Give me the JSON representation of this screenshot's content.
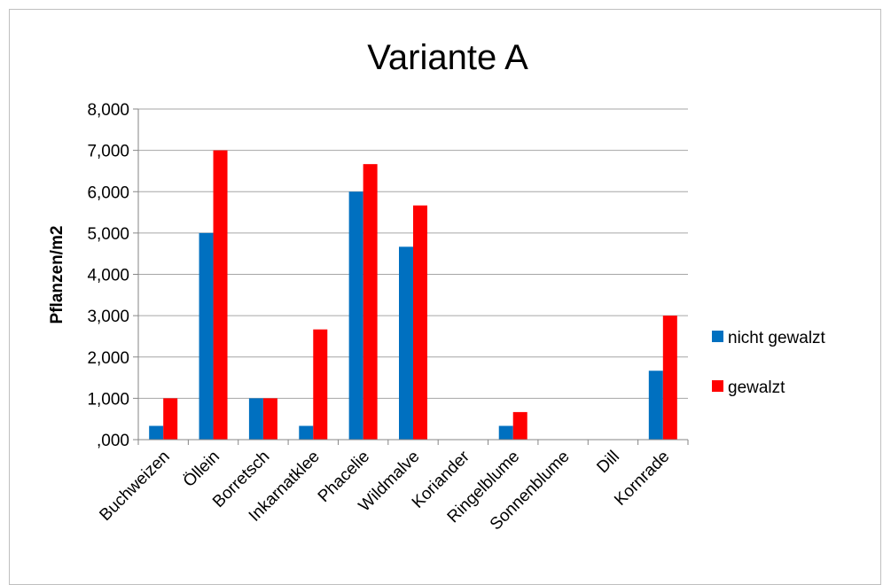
{
  "chart_data": {
    "type": "bar",
    "title": "Variante A",
    "xlabel": "",
    "ylabel": "Pflanzen/m2",
    "ylim": [
      0,
      8
    ],
    "yticks": [
      {
        "value": 0,
        "label": ",000"
      },
      {
        "value": 1,
        "label": "1,000"
      },
      {
        "value": 2,
        "label": "2,000"
      },
      {
        "value": 3,
        "label": "3,000"
      },
      {
        "value": 4,
        "label": "4,000"
      },
      {
        "value": 5,
        "label": "5,000"
      },
      {
        "value": 6,
        "label": "6,000"
      },
      {
        "value": 7,
        "label": "7,000"
      },
      {
        "value": 8,
        "label": "8,000"
      }
    ],
    "grid": true,
    "legend_position": "right",
    "categories": [
      "Buchweizen",
      "Öllein",
      "Borretsch",
      "Inkarnatklee",
      "Phacelie",
      "Wildmalve",
      "Koriander",
      "Ringelblume",
      "Sonnenblume",
      "Dill",
      "Kornrade"
    ],
    "series": [
      {
        "name": "nicht gewalzt",
        "color": "#0070c0",
        "values": [
          0.333,
          5.0,
          1.0,
          0.333,
          6.0,
          4.667,
          0,
          0.333,
          0,
          0,
          1.667
        ]
      },
      {
        "name": "gewalzt",
        "color": "#ff0000",
        "values": [
          1.0,
          7.0,
          1.0,
          2.667,
          6.667,
          5.667,
          0,
          0.667,
          0,
          0,
          3.0
        ]
      }
    ]
  }
}
